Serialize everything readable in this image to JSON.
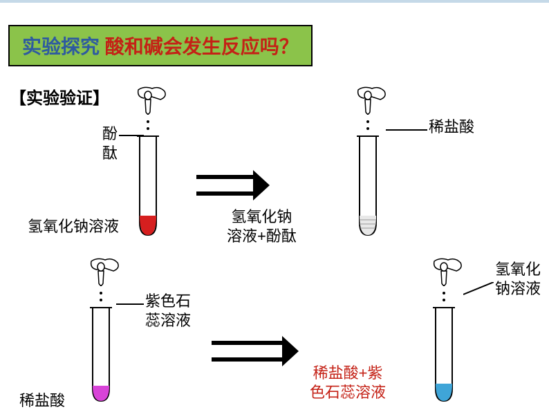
{
  "title": {
    "prefix": "实验探究   ",
    "question": "酸和碱会发生反应吗？",
    "bg_color": "#8bc34a",
    "prefix_color": "#2e5aa0",
    "question_color": "#c42116"
  },
  "subtitle": "【实验验证】",
  "subtitle_color": "#000000",
  "experiments": {
    "top_left": {
      "dropper_label": "酚\n酞",
      "tube_label": "氢氧化钠溶液",
      "liquid_color": "#d61f1f",
      "liquid_height": 28
    },
    "top_right": {
      "dropper_label": "稀盐酸",
      "tube_label": "氢氧化钠\n溶液+酚酞",
      "liquid_color": "#e8e8e8",
      "liquid_stripe": true,
      "liquid_height": 28
    },
    "bottom_left": {
      "dropper_label": "紫色石\n蕊溶液",
      "tube_label": "稀盐酸",
      "liquid_color": "#d844d8",
      "liquid_height": 22
    },
    "bottom_right": {
      "dropper_label": "氢氧化\n钠溶液",
      "tube_label": "稀盐酸+紫\n色石蕊溶液",
      "tube_label_color": "#c42116",
      "liquid_color": "#3fa5d8",
      "liquid_height": 25
    }
  },
  "styles": {
    "arrow_stroke": "#000000",
    "arrow_width": 6,
    "connector_stroke": "#000000",
    "connector_width": 2
  }
}
